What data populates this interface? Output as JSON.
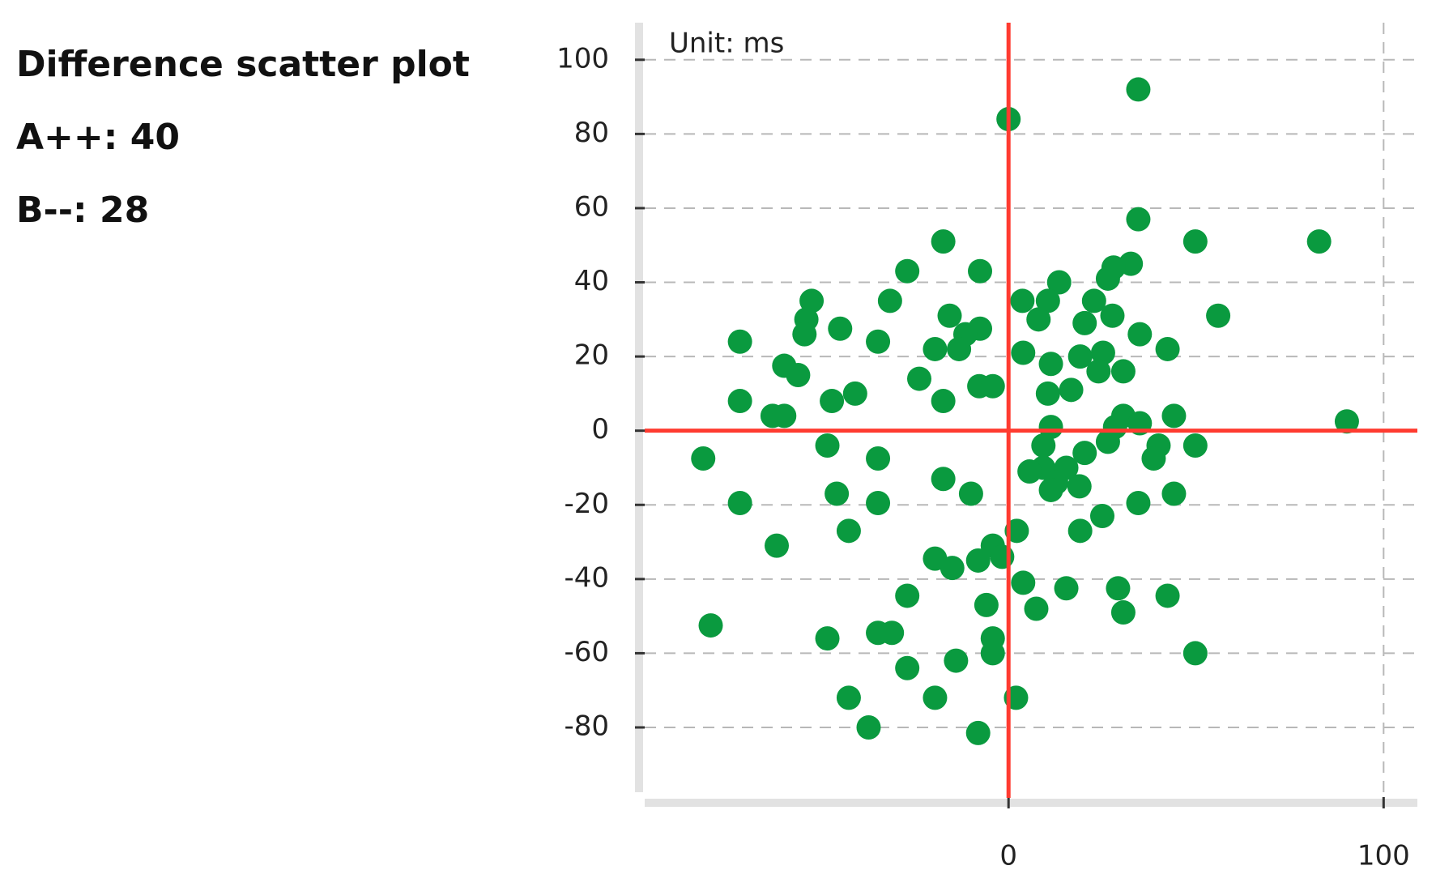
{
  "chart_data": {
    "type": "scatter",
    "annotations": [
      "Difference scatter plot",
      "A++: 40",
      "B--: 28"
    ],
    "unit_label": "Unit: ms",
    "color": "#0a9a3f",
    "reference_color": "#ff3b30",
    "reference_lines": {
      "x": 0,
      "y": 0
    },
    "xlim": [
      -97,
      109
    ],
    "ylim": [
      -99,
      110
    ],
    "xticks": [
      0,
      100
    ],
    "yticks": [
      -80,
      -60,
      -40,
      -20,
      0,
      20,
      40,
      60,
      80,
      100
    ],
    "grid": true,
    "x": [
      34.6,
      0,
      34.6,
      -17.4,
      49.8,
      82.8,
      -7.6,
      -27,
      32.6,
      28,
      26.5,
      13.5,
      -52.5,
      -31.6,
      3.7,
      10.5,
      22.8,
      8,
      55.9,
      -15.7,
      -53.9,
      27.7,
      20.3,
      -54.4,
      -44.9,
      -7.6,
      -11.5,
      35,
      -71.6,
      -34.8,
      -19.6,
      -13.2,
      42.4,
      3.9,
      25.2,
      19.1,
      11.3,
      30.6,
      24,
      -59.8,
      -56.1,
      -23.8,
      -7.8,
      -4.2,
      16.7,
      10.5,
      -40.9,
      -47.1,
      -71.6,
      -17.4,
      -62.9,
      -59.8,
      30.6,
      44.1,
      90.2,
      35,
      11.3,
      28.4,
      9.3,
      -48.3,
      49.8,
      40,
      26.5,
      20.3,
      -81.4,
      -34.8,
      38.7,
      9.3,
      15.4,
      5.6,
      12.7,
      18.9,
      -17.4,
      11.3,
      -45.8,
      -10,
      44.1,
      -71.6,
      -34.8,
      34.6,
      25,
      19.1,
      -42.6,
      2.2,
      -61.8,
      -4.2,
      -1.7,
      -19.6,
      -8.1,
      -15,
      3.9,
      15.4,
      29.2,
      -27,
      42.4,
      -5.9,
      7.4,
      30.6,
      -79.4,
      -34.8,
      -31.1,
      -48.3,
      -4.2,
      -4.2,
      49.8,
      -14,
      -27,
      2,
      -42.6,
      -19.6,
      -37.3,
      -8.1
    ],
    "values": [
      92,
      84,
      57,
      51,
      51,
      51,
      43,
      43,
      45,
      44,
      41,
      40,
      35,
      35,
      35,
      35,
      35,
      30,
      31,
      31,
      30,
      31,
      29,
      26,
      27.5,
      27.5,
      26,
      26,
      24,
      24,
      22,
      22,
      22,
      21,
      21,
      20,
      18,
      16,
      16,
      17.5,
      15,
      14,
      12,
      12,
      11,
      10,
      10,
      8,
      8,
      8,
      4,
      4,
      4,
      4,
      2.5,
      2,
      1,
      1,
      -4,
      -4,
      -4,
      -4,
      -3,
      -6,
      -7.5,
      -7.5,
      -7.5,
      -10,
      -10,
      -11,
      -14,
      -15,
      -13,
      -16,
      -17,
      -17,
      -17,
      -19.5,
      -19.5,
      -19.5,
      -23,
      -27,
      -27,
      -27,
      -31,
      -31,
      -34,
      -34.5,
      -35,
      -37,
      -41,
      -42.5,
      -42.5,
      -44.5,
      -44.5,
      -47,
      -48,
      -49,
      -52.5,
      -54.5,
      -54.5,
      -56,
      -56,
      -60,
      -60,
      -62,
      -64,
      -72,
      -72,
      -72,
      -80,
      -81.5
    ]
  }
}
